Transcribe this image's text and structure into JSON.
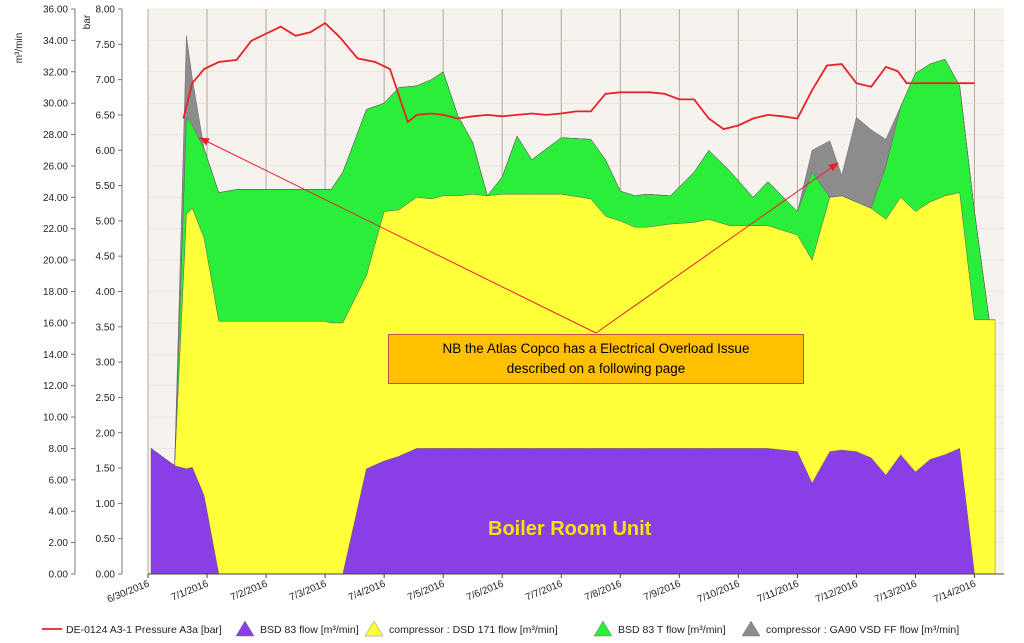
{
  "chart_data": {
    "type": "area",
    "x_categories": [
      "6/30/2016",
      "7/1/2016",
      "7/2/2016",
      "7/3/2016",
      "7/4/2016",
      "7/5/2016",
      "7/6/2016",
      "7/7/2016",
      "7/8/2016",
      "7/9/2016",
      "7/10/2016",
      "7/11/2016",
      "7/12/2016",
      "7/13/2016",
      "7/14/2016"
    ],
    "y_left": {
      "label": "m³/min",
      "ticks": [
        "0.00",
        "2.00",
        "4.00",
        "6.00",
        "8.00",
        "10.00",
        "12.00",
        "14.00",
        "16.00",
        "18.00",
        "20.00",
        "22.00",
        "24.00",
        "26.00",
        "28.00",
        "30.00",
        "32.00",
        "34.00",
        "36.00"
      ],
      "ylim": [
        0,
        36
      ]
    },
    "y_right": {
      "label": "bar",
      "ticks": [
        "0.00",
        "0.50",
        "1.00",
        "1.50",
        "2.00",
        "2.50",
        "3.00",
        "3.50",
        "4.00",
        "4.50",
        "5.00",
        "5.50",
        "6.00",
        "6.50",
        "7.00",
        "7.50",
        "8.00"
      ],
      "ylim": [
        0,
        8
      ]
    },
    "x": [
      0.05,
      0.45,
      0.65,
      0.75,
      0.95,
      1.2,
      1.5,
      2,
      2.5,
      3,
      3.1,
      3.3,
      3.7,
      4,
      4.25,
      4.55,
      4.8,
      5,
      5.25,
      5.5,
      5.75,
      6,
      6.25,
      6.5,
      7,
      7.5,
      7.75,
      8,
      8.25,
      8.45,
      8.85,
      9.25,
      9.5,
      9.85,
      10.25,
      10.5,
      11,
      11.25,
      11.55,
      11.75,
      12,
      12.25,
      12.5,
      12.75,
      13,
      13.25,
      13.5,
      13.75,
      14,
      14.25,
      14.35
    ],
    "series": [
      {
        "name": "BSD 83  flow  [m³/min]",
        "color": "#8a3ee6",
        "values": [
          8,
          6.9,
          6.7,
          6.8,
          5,
          0,
          0,
          0,
          0,
          0,
          0,
          0,
          6.7,
          7.2,
          7.5,
          8,
          8,
          8,
          8,
          8,
          8,
          8,
          8,
          8,
          8,
          8,
          8,
          8,
          8,
          8,
          8,
          8,
          8,
          8,
          8,
          8,
          7.8,
          5.8,
          7.8,
          7.9,
          7.8,
          7.4,
          6.3,
          7.6,
          6.5,
          7.3,
          7.6,
          8,
          0,
          0,
          0
        ]
      },
      {
        "name": "compressor : DSD 171  flow  [m³/min]",
        "color": "#ffff3a",
        "values": [
          0,
          0,
          16.2,
          16.5,
          16.4,
          16.1,
          16.1,
          16.1,
          16.1,
          16.1,
          16.0,
          16.0,
          12.3,
          15.9,
          15.7,
          16.0,
          15.9,
          16.1,
          16.1,
          16.2,
          16.1,
          16.2,
          16.2,
          16.2,
          16.2,
          15.9,
          14.8,
          14.5,
          14.1,
          14.1,
          14.3,
          14.4,
          14.6,
          14.2,
          14.2,
          14.2,
          13.8,
          14.2,
          16.2,
          16.2,
          15.9,
          15.9,
          16.3,
          16.4,
          16.6,
          16.4,
          16.5,
          16.3,
          16.2,
          16.2,
          16.2
        ]
      },
      {
        "name": "BSD 83 T  flow  [m³/min]",
        "color": "#2aee3a",
        "values": [
          0,
          0,
          6.2,
          5.3,
          5.7,
          8.2,
          8.4,
          8.4,
          8.4,
          8.4,
          8.5,
          9.6,
          10.6,
          6.9,
          7.8,
          7.1,
          7.6,
          7.9,
          5.1,
          3.3,
          0,
          1.1,
          3.7,
          2.2,
          3.6,
          3.8,
          3.6,
          1.9,
          2.0,
          2.1,
          1.8,
          3.2,
          4.4,
          3.5,
          1.8,
          2.8,
          1.5,
          5.6,
          0,
          0,
          0,
          0,
          3.4,
          5.8,
          8.8,
          8.8,
          8.7,
          6.8,
          6.9,
          -0.5,
          0
        ]
      },
      {
        "name": "compressor : GA90 VSD FF  flow  [m³/min]",
        "color": "#8c8c8c",
        "values": [
          0,
          0,
          5.2,
          3.0,
          0,
          0,
          0,
          0,
          0,
          0,
          0,
          0,
          0,
          0,
          0,
          0,
          0,
          0,
          0,
          0,
          0,
          0,
          0,
          0,
          0,
          0,
          0,
          0,
          0,
          0,
          0,
          0,
          0,
          0,
          0,
          0,
          0,
          1.4,
          3.6,
          1.3,
          5.4,
          5.0,
          1.7,
          0,
          0,
          0,
          0,
          0,
          0,
          0,
          0
        ]
      }
    ],
    "line_series": {
      "name": "DE-0124 A3-1 Pressure A3a [bar]",
      "color": "#e8212a",
      "x": [
        0.6,
        0.75,
        0.95,
        1.2,
        1.5,
        1.75,
        2,
        2.25,
        2.5,
        2.75,
        3,
        3.25,
        3.55,
        3.85,
        4.1,
        4.4,
        4.55,
        4.8,
        5,
        5.25,
        5.5,
        5.75,
        6,
        6.25,
        6.5,
        6.75,
        7,
        7.25,
        7.5,
        7.75,
        8,
        8.25,
        8.5,
        8.75,
        9,
        9.25,
        9.5,
        9.75,
        10,
        10.25,
        10.5,
        10.75,
        11,
        11.25,
        11.5,
        11.75,
        12,
        12.25,
        12.5,
        12.7,
        12.85,
        13,
        13.25,
        13.5,
        13.75,
        14
      ],
      "values": [
        6.45,
        6.95,
        7.15,
        7.25,
        7.28,
        7.55,
        7.65,
        7.75,
        7.62,
        7.67,
        7.8,
        7.6,
        7.3,
        7.25,
        7.15,
        6.4,
        6.5,
        6.52,
        6.5,
        6.45,
        6.48,
        6.5,
        6.48,
        6.5,
        6.52,
        6.5,
        6.52,
        6.55,
        6.55,
        6.8,
        6.82,
        6.82,
        6.82,
        6.8,
        6.72,
        6.72,
        6.45,
        6.3,
        6.35,
        6.45,
        6.5,
        6.48,
        6.45,
        6.85,
        7.2,
        7.22,
        6.95,
        6.9,
        7.18,
        7.12,
        6.95,
        6.95,
        6.95,
        6.95,
        6.95,
        6.95
      ]
    },
    "annotation": {
      "line1": "NB the Atlas Copco has a Electrical Overload Issue",
      "line2": "described on a following page"
    },
    "watermark": "Boiler Room Unit",
    "legend_placement": "bottom",
    "grid": true
  }
}
